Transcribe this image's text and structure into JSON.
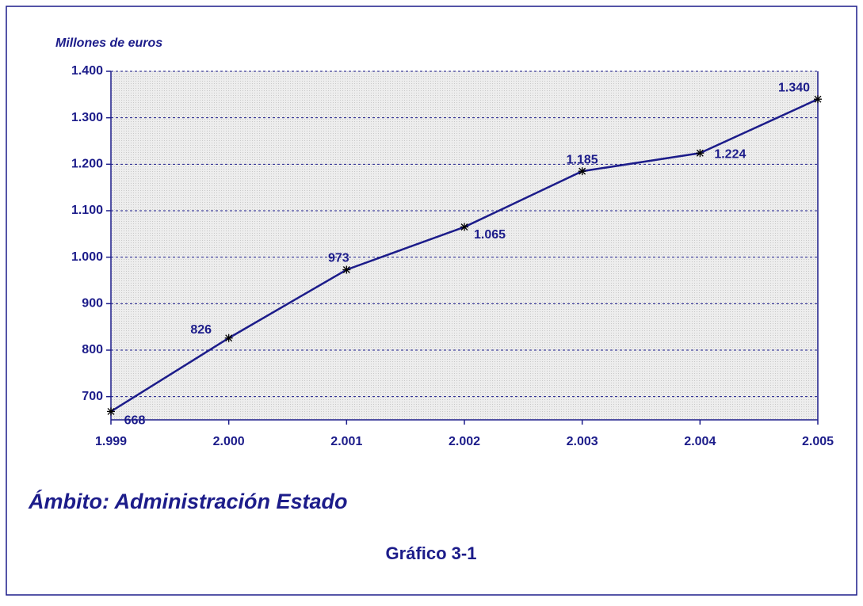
{
  "chart_data": {
    "type": "line",
    "y_label": "Millones de euros",
    "annotations": [
      "Ámbito: Administración Estado",
      "Gráfico 3-1"
    ],
    "x": [
      1999,
      2000,
      2001,
      2002,
      2003,
      2004,
      2005
    ],
    "xlim": [
      1999,
      2005
    ],
    "xticks": [
      {
        "value": 1999,
        "label": "1.999"
      },
      {
        "value": 2000,
        "label": "2.000"
      },
      {
        "value": 2001,
        "label": "2.001"
      },
      {
        "value": 2002,
        "label": "2.002"
      },
      {
        "value": 2003,
        "label": "2.003"
      },
      {
        "value": 2004,
        "label": "2.004"
      },
      {
        "value": 2005,
        "label": "2.005"
      }
    ],
    "ylim": [
      650,
      1400
    ],
    "yticks": [
      700,
      800,
      900,
      {
        "value": 1000,
        "label": "1.000"
      },
      {
        "value": 1100,
        "label": "1.100"
      },
      {
        "value": 1200,
        "label": "1.200"
      },
      {
        "value": 1300,
        "label": "1.300"
      },
      {
        "value": 1400,
        "label": "1.400"
      }
    ],
    "grid": true,
    "series": [
      {
        "color": "#1c1c8a",
        "values": [
          668,
          826,
          973,
          1065,
          1185,
          1224,
          1340
        ],
        "value_labels": [
          "668",
          "826",
          "973",
          "1.065",
          "1.185",
          "1.224",
          "1.340"
        ]
      }
    ]
  }
}
